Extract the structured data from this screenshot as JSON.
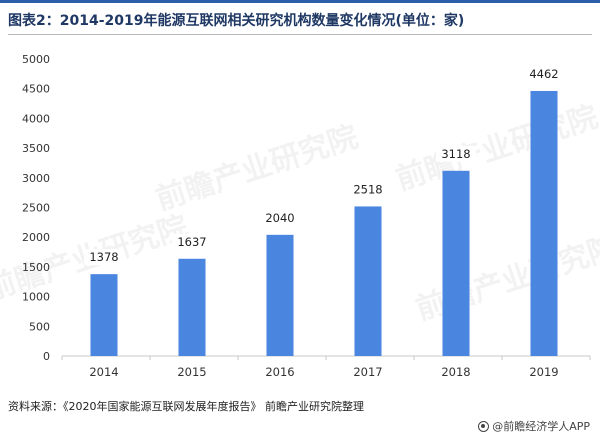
{
  "title": "图表2：2014-2019年能源互联网相关研究机构数量变化情况(单位：家)",
  "source": "资料来源：《2020年国家能源互联网发展年度报告》 前瞻产业研究院整理",
  "brand": "@前瞻经济学人APP",
  "watermark": "前瞻产业研究院",
  "colors": {
    "bar": "#4a86e0",
    "label_bg": "#ffffff",
    "axis": "#c8c8c8",
    "title": "#1f3864"
  },
  "chart_data": {
    "type": "bar",
    "categories": [
      "2014",
      "2015",
      "2016",
      "2017",
      "2018",
      "2019"
    ],
    "values": [
      1378,
      1637,
      2040,
      2518,
      3118,
      4462
    ],
    "data_labels": [
      "1378",
      "1637",
      "2040",
      "2518",
      "3118",
      "4462"
    ],
    "ylim": [
      0,
      5000
    ],
    "yticks": [
      "0",
      "500",
      "1000",
      "1500",
      "2000",
      "2500",
      "3000",
      "3500",
      "4000",
      "4500",
      "5000"
    ],
    "xlabel": "",
    "ylabel": "",
    "grid": false,
    "legend": "none"
  }
}
